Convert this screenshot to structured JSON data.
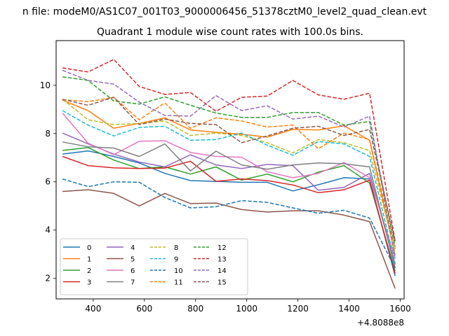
{
  "chart_data": {
    "type": "line",
    "suptitle": "n file: modeM0/AS1C07_001T03_9000006456_51378cztM0_level2_quad_clean.evt",
    "title": "Quadrant 1 module wise count rates with 100.0s bins.",
    "xlabel": "",
    "ylabel": "",
    "x_offset_label": "+4.8088e8",
    "xlim": [
      255,
      1615
    ],
    "ylim": [
      1.15,
      11.85
    ],
    "xticks": [
      400,
      600,
      800,
      1000,
      1200,
      1400,
      1600
    ],
    "yticks": [
      2,
      4,
      6,
      8,
      10
    ],
    "x": [
      280,
      380,
      480,
      580,
      680,
      780,
      880,
      980,
      1080,
      1180,
      1280,
      1380,
      1480,
      1580
    ],
    "grid": false,
    "legend_position": "lower-left",
    "series": [
      {
        "name": "0",
        "color": "#1f77b4",
        "dash": "solid",
        "values": [
          7.15,
          7.28,
          7.05,
          6.78,
          6.35,
          6.05,
          6.02,
          5.98,
          5.98,
          5.62,
          5.88,
          6.17,
          6.12,
          2.1
        ]
      },
      {
        "name": "1",
        "color": "#ff7f0e",
        "dash": "solid",
        "values": [
          9.38,
          8.95,
          8.22,
          8.42,
          8.65,
          8.15,
          8.05,
          7.97,
          7.85,
          8.17,
          8.15,
          8.32,
          7.72,
          2.95
        ]
      },
      {
        "name": "2",
        "color": "#2ca02c",
        "dash": "solid",
        "values": [
          7.3,
          7.42,
          6.9,
          6.55,
          6.62,
          6.32,
          6.62,
          6.07,
          6.32,
          6.0,
          6.4,
          6.67,
          5.95,
          2.3
        ]
      },
      {
        "name": "3",
        "color": "#d62728",
        "dash": "solid",
        "values": [
          7.05,
          6.67,
          6.58,
          6.55,
          6.57,
          6.85,
          6.02,
          6.12,
          6.05,
          5.87,
          5.55,
          5.67,
          6.07,
          2.2
        ]
      },
      {
        "name": "4",
        "color": "#9467bd",
        "dash": "solid",
        "values": [
          8.02,
          7.57,
          7.15,
          6.82,
          6.62,
          7.12,
          6.7,
          6.55,
          6.72,
          6.67,
          5.65,
          5.77,
          6.35,
          2.57
        ]
      },
      {
        "name": "5",
        "color": "#8c564b",
        "dash": "solid",
        "values": [
          5.6,
          5.67,
          5.52,
          5.0,
          5.52,
          5.1,
          5.12,
          4.85,
          4.75,
          4.8,
          4.8,
          4.62,
          4.35,
          1.58
        ]
      },
      {
        "name": "6",
        "color": "#e377c2",
        "dash": "solid",
        "values": [
          8.85,
          7.6,
          7.12,
          7.68,
          7.7,
          7.22,
          7.05,
          7.02,
          6.42,
          6.17,
          6.35,
          6.8,
          6.17,
          2.85
        ]
      },
      {
        "name": "7",
        "color": "#7f7f7f",
        "dash": "solid",
        "values": [
          7.65,
          7.45,
          7.4,
          7.05,
          7.57,
          6.45,
          7.27,
          6.7,
          6.52,
          6.7,
          6.78,
          6.75,
          6.62,
          2.42
        ]
      },
      {
        "name": "8",
        "color": "#bcbd22",
        "dash": "dashed",
        "values": [
          9.42,
          8.57,
          8.37,
          8.42,
          8.52,
          7.92,
          8.02,
          7.92,
          7.62,
          7.2,
          7.75,
          7.62,
          7.3,
          3.05
        ]
      },
      {
        "name": "9",
        "color": "#17becf",
        "dash": "dashed",
        "values": [
          8.95,
          8.35,
          7.9,
          8.25,
          8.3,
          7.72,
          7.75,
          8.02,
          7.52,
          7.1,
          7.67,
          7.57,
          7.05,
          2.62
        ]
      },
      {
        "name": "10",
        "color": "#1f77b4",
        "dash": "dashed",
        "values": [
          6.12,
          5.8,
          6.0,
          5.98,
          5.35,
          4.92,
          4.97,
          5.22,
          5.15,
          4.92,
          4.7,
          4.82,
          4.5,
          2.42
        ]
      },
      {
        "name": "11",
        "color": "#ff7f0e",
        "dash": "dashed",
        "values": [
          9.4,
          9.32,
          9.5,
          8.57,
          9.27,
          8.22,
          8.65,
          8.52,
          8.27,
          8.35,
          7.37,
          8.02,
          7.75,
          3.22
        ]
      },
      {
        "name": "12",
        "color": "#2ca02c",
        "dash": "dashed",
        "values": [
          10.35,
          10.2,
          9.35,
          9.22,
          9.52,
          9.17,
          8.85,
          8.67,
          8.67,
          8.87,
          8.87,
          8.35,
          8.5,
          3.3
        ]
      },
      {
        "name": "13",
        "color": "#d62728",
        "dash": "dashed",
        "values": [
          10.72,
          10.55,
          11.07,
          9.95,
          9.62,
          9.7,
          8.92,
          9.5,
          9.55,
          10.2,
          9.6,
          9.42,
          9.67,
          3.55
        ]
      },
      {
        "name": "14",
        "color": "#9467bd",
        "dash": "dashed",
        "values": [
          10.62,
          10.2,
          10.05,
          9.3,
          8.75,
          8.72,
          9.57,
          8.95,
          9.15,
          8.6,
          8.72,
          8.27,
          8.72,
          2.82
        ]
      },
      {
        "name": "15",
        "color": "#8c564b",
        "dash": "dashed",
        "values": [
          9.42,
          9.17,
          9.5,
          8.37,
          8.6,
          8.42,
          8.37,
          7.62,
          7.9,
          8.22,
          8.3,
          7.92,
          8.17,
          3.52
        ]
      }
    ]
  }
}
